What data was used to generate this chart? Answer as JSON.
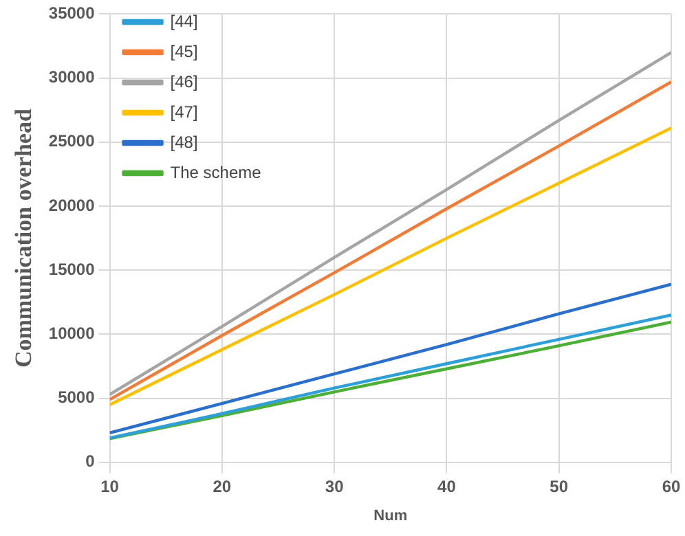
{
  "chart_data": {
    "type": "line",
    "xlabel": "Num",
    "ylabel": "Communication overhead",
    "x": [
      10,
      20,
      30,
      40,
      50,
      60
    ],
    "series": [
      {
        "name": "[44]",
        "color": "#2e9fd8",
        "values": [
          1900,
          3800,
          5800,
          7700,
          9600,
          11500
        ]
      },
      {
        "name": "[45]",
        "color": "#f27b35",
        "values": [
          4900,
          9900,
          14800,
          19800,
          24700,
          29700
        ]
      },
      {
        "name": "[46]",
        "color": "#a5a5a5",
        "values": [
          5300,
          10600,
          16000,
          21300,
          26700,
          32000
        ]
      },
      {
        "name": "[47]",
        "color": "#ffc000",
        "values": [
          4500,
          8800,
          13100,
          17500,
          21800,
          26100
        ]
      },
      {
        "name": "[48]",
        "color": "#2a6fcc",
        "values": [
          2300,
          4600,
          6900,
          9200,
          11600,
          13900
        ]
      },
      {
        "name": "The scheme",
        "color": "#4caf36",
        "values": [
          1850,
          3650,
          5500,
          7300,
          9100,
          10950
        ]
      }
    ],
    "xlim": [
      10,
      60
    ],
    "xticks": [
      10,
      20,
      30,
      40,
      50,
      60
    ],
    "ylim": [
      0,
      35000
    ],
    "yticks": [
      0,
      5000,
      10000,
      15000,
      20000,
      25000,
      30000,
      35000
    ],
    "grid": true,
    "legend": "top left",
    "marker": "none",
    "line_style": "solid"
  }
}
